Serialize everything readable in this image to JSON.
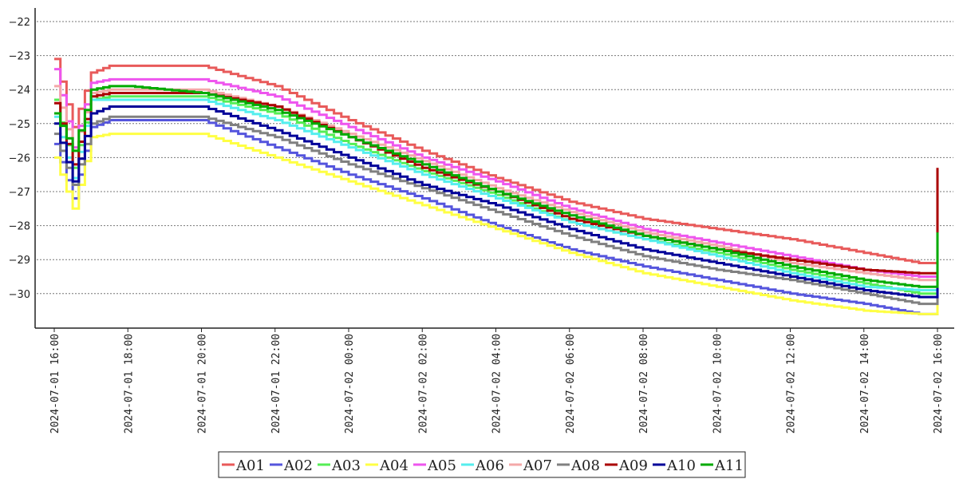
{
  "chart_data": {
    "type": "line",
    "step": true,
    "title": "",
    "xlabel": "",
    "ylabel": "",
    "x_start": "2024-07-01 16:00",
    "x_end": "2024-07-02 16:00",
    "x_ticks": [
      "2024-07-01 16:00",
      "2024-07-01 18:00",
      "2024-07-01 20:00",
      "2024-07-01 22:00",
      "2024-07-02 00:00",
      "2024-07-02 02:00",
      "2024-07-02 04:00",
      "2024-07-02 06:00",
      "2024-07-02 08:00",
      "2024-07-02 10:00",
      "2024-07-02 12:00",
      "2024-07-02 14:00",
      "2024-07-02 16:00"
    ],
    "ylim": [
      -30.9,
      -21.6
    ],
    "y_ticks": [
      -30,
      -29,
      -28,
      -27,
      -26,
      -25,
      -24,
      -23,
      -22
    ],
    "grid": "horizontal-dotted",
    "legend": "bottom-center",
    "x": [
      "2024-07-01 16:00",
      "2024-07-01 16:30",
      "2024-07-01 17:00",
      "2024-07-01 17:30",
      "2024-07-01 18:00",
      "2024-07-01 20:00",
      "2024-07-01 22:00",
      "2024-07-02 00:00",
      "2024-07-02 02:00",
      "2024-07-02 04:00",
      "2024-07-02 06:00",
      "2024-07-02 08:00",
      "2024-07-02 10:00",
      "2024-07-02 12:00",
      "2024-07-02 14:00",
      "2024-07-02 15:30",
      "2024-07-02 15:45",
      "2024-07-02 16:00"
    ],
    "series": [
      {
        "name": "A01",
        "color": "#e85a5a",
        "values": [
          -23.1,
          -25.1,
          -23.5,
          -23.3,
          -23.3,
          -23.3,
          -23.9,
          -24.9,
          -25.8,
          -26.6,
          -27.3,
          -27.8,
          -28.1,
          -28.4,
          -28.8,
          -29.1,
          -29.1,
          -27.0
        ]
      },
      {
        "name": "A02",
        "color": "#5555dd",
        "values": [
          -25.6,
          -27.2,
          -25.1,
          -24.9,
          -24.9,
          -24.9,
          -25.7,
          -26.5,
          -27.2,
          -28.0,
          -28.7,
          -29.2,
          -29.6,
          -30.0,
          -30.3,
          -30.6,
          -30.6,
          -27.2
        ]
      },
      {
        "name": "A03",
        "color": "#55ee55",
        "values": [
          -24.3,
          -26.3,
          -24.3,
          -24.2,
          -24.2,
          -24.2,
          -24.7,
          -25.6,
          -26.4,
          -27.1,
          -27.9,
          -28.4,
          -28.8,
          -29.3,
          -29.7,
          -30.0,
          -30.0,
          -28.3
        ]
      },
      {
        "name": "A04",
        "color": "#ffff44",
        "values": [
          -26.0,
          -27.5,
          -25.4,
          -25.3,
          -25.3,
          -25.3,
          -26.0,
          -26.7,
          -27.4,
          -28.1,
          -28.8,
          -29.4,
          -29.8,
          -30.2,
          -30.5,
          -30.6,
          -30.6,
          -28.7
        ]
      },
      {
        "name": "A05",
        "color": "#ee55ee",
        "values": [
          -23.4,
          -25.7,
          -23.8,
          -23.7,
          -23.7,
          -23.7,
          -24.2,
          -25.1,
          -26.0,
          -26.7,
          -27.5,
          -28.1,
          -28.5,
          -28.9,
          -29.3,
          -29.5,
          -29.5,
          -27.8
        ]
      },
      {
        "name": "A06",
        "color": "#55eeee",
        "values": [
          -24.8,
          -26.6,
          -24.3,
          -24.3,
          -24.3,
          -24.3,
          -24.9,
          -25.7,
          -26.5,
          -27.2,
          -27.9,
          -28.4,
          -28.9,
          -29.4,
          -29.8,
          -29.9,
          -29.9,
          -28.5
        ]
      },
      {
        "name": "A07",
        "color": "#f4a8a8",
        "values": [
          -23.9,
          -25.8,
          -24.1,
          -24.0,
          -24.0,
          -24.0,
          -24.5,
          -25.3,
          -26.1,
          -26.9,
          -27.6,
          -28.2,
          -28.6,
          -29.1,
          -29.4,
          -29.6,
          -29.6,
          -28.0
        ]
      },
      {
        "name": "A08",
        "color": "#808080",
        "values": [
          -25.3,
          -26.8,
          -25.0,
          -24.8,
          -24.8,
          -24.8,
          -25.4,
          -26.2,
          -26.9,
          -27.6,
          -28.3,
          -28.9,
          -29.3,
          -29.6,
          -30.0,
          -30.3,
          -30.3,
          -28.4
        ]
      },
      {
        "name": "A09",
        "color": "#aa0000",
        "values": [
          -24.4,
          -26.2,
          -24.2,
          -24.1,
          -24.1,
          -24.1,
          -24.5,
          -25.4,
          -26.3,
          -27.0,
          -27.8,
          -28.3,
          -28.7,
          -29.0,
          -29.3,
          -29.4,
          -29.4,
          -26.3
        ]
      },
      {
        "name": "A10",
        "color": "#000099",
        "values": [
          -25.0,
          -26.7,
          -24.7,
          -24.5,
          -24.5,
          -24.5,
          -25.2,
          -26.0,
          -26.8,
          -27.4,
          -28.1,
          -28.7,
          -29.1,
          -29.5,
          -29.9,
          -30.1,
          -30.1,
          -28.6
        ]
      },
      {
        "name": "A11",
        "color": "#00aa00",
        "values": [
          -24.7,
          -25.8,
          -24.0,
          -23.9,
          -23.9,
          -24.1,
          -24.6,
          -25.4,
          -26.2,
          -27.0,
          -27.7,
          -28.3,
          -28.7,
          -29.2,
          -29.6,
          -29.8,
          -29.8,
          -28.2
        ]
      }
    ]
  }
}
